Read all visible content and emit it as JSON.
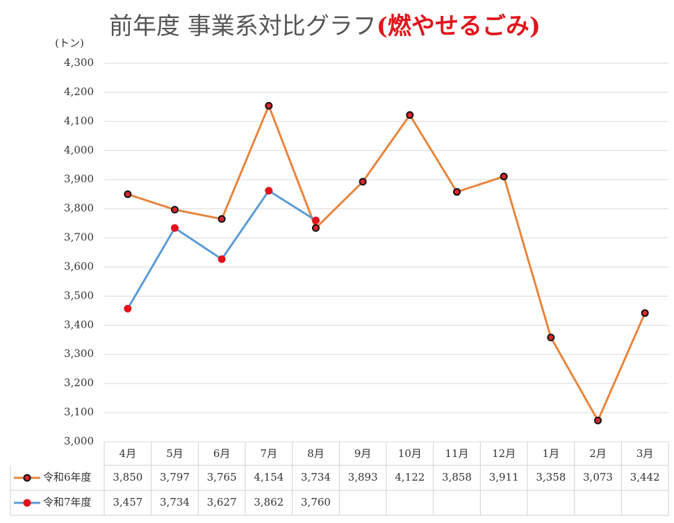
{
  "chart_data": {
    "type": "line",
    "title": "前年度 事業系対比グラフ",
    "title_highlight": "(燃やせるごみ)",
    "y_label": "(トン)",
    "categories": [
      "4月",
      "5月",
      "6月",
      "7月",
      "8月",
      "9月",
      "10月",
      "11月",
      "12月",
      "1月",
      "2月",
      "3月"
    ],
    "series": [
      {
        "name": "令和6年度",
        "color": "#e8843c",
        "marker_color": "#111111",
        "marker_center": "#d9262b",
        "values": [
          3850,
          3797,
          3765,
          4154,
          3734,
          3893,
          4122,
          3858,
          3911,
          3358,
          3073,
          3442
        ],
        "value_labels": [
          "3,850",
          "3,797",
          "3,765",
          "4,154",
          "3,734",
          "3,893",
          "4,122",
          "3,858",
          "3,911",
          "3,358",
          "3,073",
          "3,442"
        ]
      },
      {
        "name": "令和7年度",
        "color": "#5b9bd5",
        "marker_color": "#e0141c",
        "marker_center": "#e0141c",
        "values": [
          3457,
          3734,
          3627,
          3862,
          3760,
          null,
          null,
          null,
          null,
          null,
          null,
          null
        ],
        "value_labels": [
          "3,457",
          "3,734",
          "3,627",
          "3,862",
          "3,760",
          null,
          null,
          null,
          null,
          null,
          null,
          null
        ]
      }
    ],
    "ylim": [
      3000,
      4300
    ],
    "yticks": [
      {
        "value": 3000,
        "label": "3,000"
      },
      {
        "value": 3100,
        "label": "3,100"
      },
      {
        "value": 3200,
        "label": "3,200"
      },
      {
        "value": 3300,
        "label": "3,300"
      },
      {
        "value": 3400,
        "label": "3,400"
      },
      {
        "value": 3500,
        "label": "3,500"
      },
      {
        "value": 3600,
        "label": "3,600"
      },
      {
        "value": 3700,
        "label": "3,700"
      },
      {
        "value": 3800,
        "label": "3,800"
      },
      {
        "value": 3900,
        "label": "3,900"
      },
      {
        "value": 4000,
        "label": "4,000"
      },
      {
        "value": 4100,
        "label": "4,100"
      },
      {
        "value": 4200,
        "label": "4,200"
      },
      {
        "value": 4300,
        "label": "4,300"
      }
    ],
    "grid": true,
    "data_table": true
  }
}
